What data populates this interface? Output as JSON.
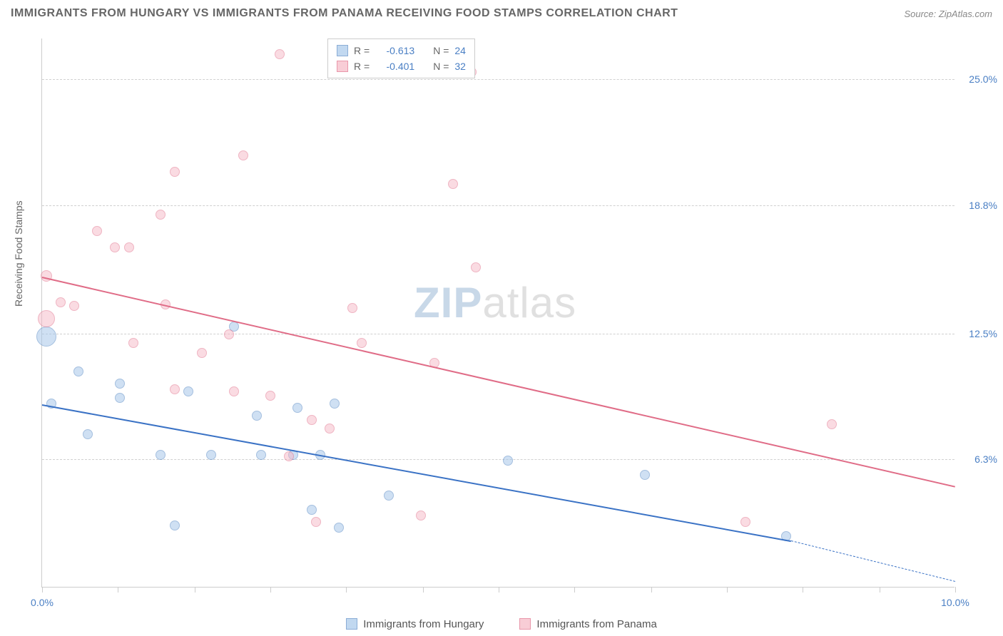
{
  "title": "IMMIGRANTS FROM HUNGARY VS IMMIGRANTS FROM PANAMA RECEIVING FOOD STAMPS CORRELATION CHART",
  "source": "Source: ZipAtlas.com",
  "y_axis_label": "Receiving Food Stamps",
  "watermark_a": "ZIP",
  "watermark_b": "atlas",
  "chart": {
    "xlim": [
      0,
      10
    ],
    "ylim": [
      0,
      27
    ],
    "x_ticks": [
      0,
      0.83,
      1.67,
      2.5,
      3.33,
      4.17,
      5.0,
      5.83,
      6.67,
      7.5,
      8.33,
      9.17,
      10.0
    ],
    "x_tick_labels": {
      "0": "0.0%",
      "10": "10.0%"
    },
    "y_gridlines": [
      6.3,
      12.5,
      18.8,
      25.0
    ],
    "y_tick_labels": [
      "6.3%",
      "12.5%",
      "18.8%",
      "25.0%"
    ],
    "background": "#ffffff",
    "grid_color": "#d0d0d0",
    "axis_color": "#cccccc"
  },
  "series": [
    {
      "name": "Immigrants from Hungary",
      "key": "hungary",
      "fill": "#a8c8ea",
      "stroke": "#5b8bc5",
      "fill_opacity": 0.55,
      "R": "-0.613",
      "N": "24",
      "trend": {
        "x1": 0,
        "y1": 9.0,
        "x2": 8.2,
        "y2": 2.3,
        "color": "#3a72c5",
        "dash_x2": 10.0,
        "dash_y2": 0.3
      },
      "points": [
        {
          "x": 0.05,
          "y": 12.3,
          "r": 14
        },
        {
          "x": 0.1,
          "y": 9.0,
          "r": 7
        },
        {
          "x": 0.4,
          "y": 10.6,
          "r": 7
        },
        {
          "x": 0.5,
          "y": 7.5,
          "r": 7
        },
        {
          "x": 0.85,
          "y": 10.0,
          "r": 7
        },
        {
          "x": 0.85,
          "y": 9.3,
          "r": 7
        },
        {
          "x": 1.3,
          "y": 6.5,
          "r": 7
        },
        {
          "x": 1.45,
          "y": 3.0,
          "r": 7
        },
        {
          "x": 1.6,
          "y": 9.6,
          "r": 7
        },
        {
          "x": 1.85,
          "y": 6.5,
          "r": 7
        },
        {
          "x": 2.1,
          "y": 12.8,
          "r": 7
        },
        {
          "x": 2.35,
          "y": 8.4,
          "r": 7
        },
        {
          "x": 2.4,
          "y": 6.5,
          "r": 7
        },
        {
          "x": 2.75,
          "y": 6.5,
          "r": 7
        },
        {
          "x": 2.8,
          "y": 8.8,
          "r": 7
        },
        {
          "x": 2.95,
          "y": 3.8,
          "r": 7
        },
        {
          "x": 3.05,
          "y": 6.5,
          "r": 7
        },
        {
          "x": 3.2,
          "y": 9.0,
          "r": 7
        },
        {
          "x": 3.25,
          "y": 2.9,
          "r": 7
        },
        {
          "x": 3.8,
          "y": 4.5,
          "r": 7
        },
        {
          "x": 5.1,
          "y": 6.2,
          "r": 7
        },
        {
          "x": 6.6,
          "y": 5.5,
          "r": 7
        },
        {
          "x": 8.15,
          "y": 2.5,
          "r": 7
        }
      ]
    },
    {
      "name": "Immigrants from Panama",
      "key": "panama",
      "fill": "#f6b8c6",
      "stroke": "#e06c87",
      "fill_opacity": 0.5,
      "R": "-0.401",
      "N": "32",
      "trend": {
        "x1": 0,
        "y1": 15.3,
        "x2": 10.0,
        "y2": 5.0,
        "color": "#e06c87"
      },
      "points": [
        {
          "x": 0.05,
          "y": 15.3,
          "r": 8
        },
        {
          "x": 0.05,
          "y": 13.2,
          "r": 12
        },
        {
          "x": 0.2,
          "y": 14.0,
          "r": 7
        },
        {
          "x": 0.35,
          "y": 13.8,
          "r": 7
        },
        {
          "x": 0.6,
          "y": 17.5,
          "r": 7
        },
        {
          "x": 0.8,
          "y": 16.7,
          "r": 7
        },
        {
          "x": 0.95,
          "y": 16.7,
          "r": 7
        },
        {
          "x": 1.0,
          "y": 12.0,
          "r": 7
        },
        {
          "x": 1.3,
          "y": 18.3,
          "r": 7
        },
        {
          "x": 1.35,
          "y": 13.9,
          "r": 7
        },
        {
          "x": 1.45,
          "y": 20.4,
          "r": 7
        },
        {
          "x": 1.45,
          "y": 9.7,
          "r": 7
        },
        {
          "x": 1.75,
          "y": 11.5,
          "r": 7
        },
        {
          "x": 2.05,
          "y": 12.4,
          "r": 7
        },
        {
          "x": 2.1,
          "y": 9.6,
          "r": 7
        },
        {
          "x": 2.2,
          "y": 21.2,
          "r": 7
        },
        {
          "x": 2.5,
          "y": 9.4,
          "r": 7
        },
        {
          "x": 2.6,
          "y": 26.2,
          "r": 7
        },
        {
          "x": 2.7,
          "y": 6.4,
          "r": 7
        },
        {
          "x": 2.95,
          "y": 8.2,
          "r": 7
        },
        {
          "x": 3.0,
          "y": 3.2,
          "r": 7
        },
        {
          "x": 3.15,
          "y": 7.8,
          "r": 7
        },
        {
          "x": 3.4,
          "y": 13.7,
          "r": 7
        },
        {
          "x": 3.5,
          "y": 12.0,
          "r": 7
        },
        {
          "x": 4.15,
          "y": 3.5,
          "r": 7
        },
        {
          "x": 4.3,
          "y": 11.0,
          "r": 7
        },
        {
          "x": 4.5,
          "y": 19.8,
          "r": 7
        },
        {
          "x": 4.7,
          "y": 25.3,
          "r": 7
        },
        {
          "x": 4.75,
          "y": 15.7,
          "r": 7
        },
        {
          "x": 7.7,
          "y": 3.2,
          "r": 7
        },
        {
          "x": 8.65,
          "y": 8.0,
          "r": 7
        }
      ]
    }
  ],
  "legend_stat_labels": {
    "R": "R =",
    "N": "N ="
  },
  "colors": {
    "stat_value": "#4a7fc4",
    "stat_label": "#666666"
  }
}
